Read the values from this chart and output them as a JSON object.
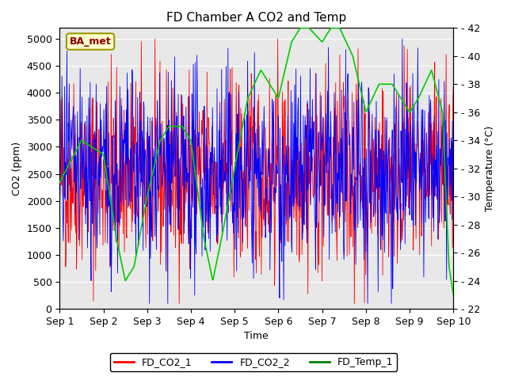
{
  "title": "FD Chamber A CO2 and Temp",
  "xlabel": "Time",
  "ylabel_left": "CO2 (ppm)",
  "ylabel_right": "Temperature (C)",
  "ylim_left": [
    0,
    5200
  ],
  "ylim_right": [
    22,
    42
  ],
  "yticks_left": [
    0,
    500,
    1000,
    1500,
    2000,
    2500,
    3000,
    3500,
    4000,
    4500,
    5000
  ],
  "yticks_right": [
    22,
    24,
    26,
    28,
    30,
    32,
    34,
    36,
    38,
    40,
    42
  ],
  "xtick_labels": [
    "Sep 1",
    "Sep 2",
    "Sep 3",
    "Sep 4",
    "Sep 5",
    "Sep 6",
    "Sep 7",
    "Sep 8",
    "Sep 9",
    "Sep 10"
  ],
  "color_co2_1": "red",
  "color_co2_2": "blue",
  "color_temp": "#00cc00",
  "legend_labels": [
    "FD_CO2_1",
    "FD_CO2_2",
    "FD_Temp_1"
  ],
  "annotation_text": "BA_met",
  "annotation_bbox_facecolor": "#ffffcc",
  "annotation_bbox_edgecolor": "#999900",
  "bg_color": "#e8e8e8",
  "title_fontsize": 11,
  "axis_label_fontsize": 9,
  "tick_fontsize": 9,
  "temp_checkpoints_t": [
    0,
    0.5,
    1.0,
    1.3,
    1.5,
    1.7,
    2.0,
    2.3,
    2.5,
    2.8,
    3.0,
    3.3,
    3.5,
    3.7,
    4.0,
    4.3,
    4.6,
    5.0,
    5.3,
    5.5,
    5.7,
    6.0,
    6.2,
    6.4,
    6.7,
    7.0,
    7.3,
    7.6,
    8.0,
    8.2,
    8.5,
    8.75,
    8.9,
    9.0
  ],
  "temp_checkpoints_v": [
    31,
    34,
    33,
    27,
    24,
    25,
    30,
    34,
    35,
    35,
    34,
    27,
    24,
    27,
    32,
    37,
    39,
    37,
    41,
    42,
    42,
    41,
    42,
    42,
    40,
    36,
    38,
    38,
    36,
    37,
    39,
    36,
    25,
    23
  ]
}
